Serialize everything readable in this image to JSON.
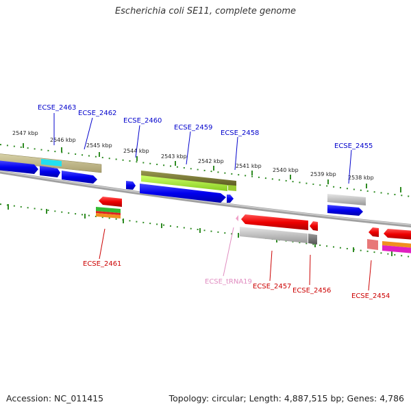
{
  "title": "Escherichia coli SE11, complete genome",
  "footer": {
    "accession": "Accession: NC_011415",
    "summary": "Topology: circular; Length: 4,887,515 bp; Genes: 4,786"
  },
  "colors": {
    "backbone": "#8a8a8a",
    "ticks": "#2e8b22",
    "label_blue": "#0000cc",
    "label_red": "#cc0000",
    "label_pink": "#e08cc0"
  },
  "kbp_labels": [
    "2547 kbp",
    "2546 kbp",
    "2545 kbp",
    "2544 kbp",
    "2543 kbp",
    "2542 kbp",
    "2541 kbp",
    "2540 kbp",
    "2539 kbp",
    "2538 kbp"
  ],
  "gene_labels": {
    "ECSE_2463": "ECSE_2463",
    "ECSE_2462": "ECSE_2462",
    "ECSE_2460": "ECSE_2460",
    "ECSE_2459": "ECSE_2459",
    "ECSE_2458": "ECSE_2458",
    "ECSE_2455": "ECSE_2455",
    "ECSE_2461": "ECSE_2461",
    "ECSE_tRNA19": "ECSE_tRNA19",
    "ECSE_2457": "ECSE_2457",
    "ECSE_2456": "ECSE_2456",
    "ECSE_2454": "ECSE_2454"
  }
}
